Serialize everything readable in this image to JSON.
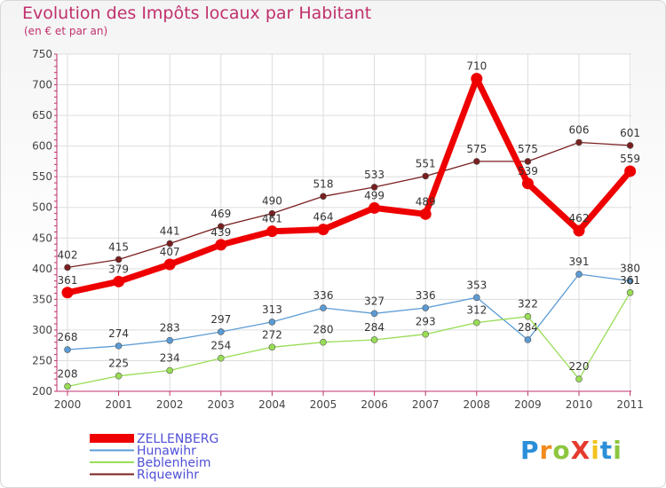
{
  "title": "Evolution des Impôts locaux par Habitant",
  "subtitle": "(en € et par an)",
  "logo": {
    "text": "ProXiti",
    "letters": [
      "P",
      "r",
      "o",
      "X",
      "i",
      "t",
      "i"
    ]
  },
  "colors": {
    "title": "#c0306c",
    "ZELLENBERG": "#ee0000",
    "Hunawihr": "#5b9bd5",
    "Beblenheim": "#99dd55",
    "Riquewihr": "#7a1f1f",
    "grid": "#dddddd",
    "axis": "#c0306c",
    "label": "#444444"
  },
  "chart_data": {
    "type": "line",
    "title": "Evolution des Impôts locaux par Habitant",
    "subtitle": "(en € et par an)",
    "xlabel": "",
    "ylabel": "",
    "ylim": [
      200,
      750
    ],
    "yticks": [
      200,
      250,
      300,
      350,
      400,
      450,
      500,
      550,
      600,
      650,
      700,
      750
    ],
    "grid": true,
    "legend": "bottom-left",
    "categories": [
      "2000",
      "2001",
      "2002",
      "2003",
      "2004",
      "2005",
      "2006",
      "2007",
      "2008",
      "2009",
      "2010",
      "2011"
    ],
    "series": [
      {
        "name": "ZELLENBERG",
        "values": [
          361,
          379,
          407,
          439,
          461,
          464,
          499,
          489,
          710,
          539,
          462,
          559
        ]
      },
      {
        "name": "Hunawihr",
        "values": [
          268,
          274,
          283,
          297,
          313,
          336,
          327,
          336,
          353,
          284,
          391,
          380
        ]
      },
      {
        "name": "Beblenheim",
        "values": [
          208,
          225,
          234,
          254,
          272,
          280,
          284,
          293,
          312,
          322,
          220,
          361
        ]
      },
      {
        "name": "Riquewihr",
        "values": [
          402,
          415,
          441,
          469,
          490,
          518,
          533,
          551,
          575,
          575,
          606,
          601
        ]
      }
    ]
  }
}
